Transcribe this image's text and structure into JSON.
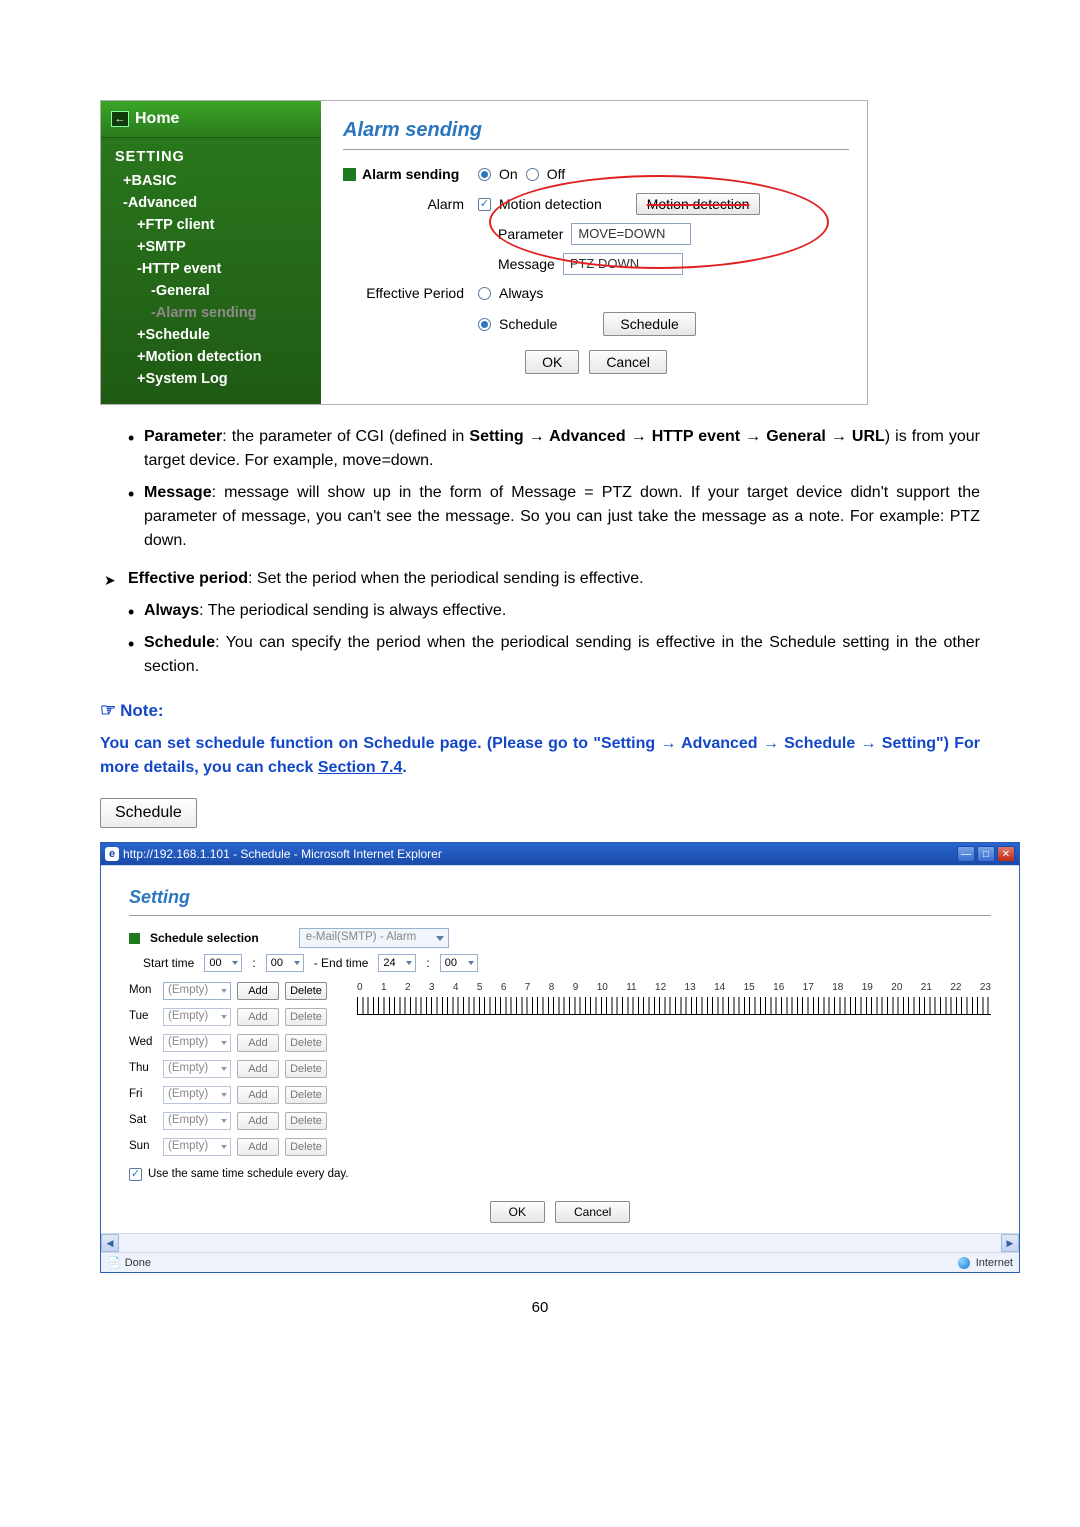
{
  "alarm_panel": {
    "home_label": "Home",
    "sidebar": {
      "setting": "SETTING",
      "items": [
        {
          "label": "+BASIC",
          "indent": "ind1"
        },
        {
          "label": "-Advanced",
          "indent": "ind1"
        },
        {
          "label": "+FTP client",
          "indent": "ind2"
        },
        {
          "label": "+SMTP",
          "indent": "ind2"
        },
        {
          "label": "-HTTP event",
          "indent": "ind2"
        },
        {
          "label": "-General",
          "indent": "ind3"
        },
        {
          "label": "-Alarm sending",
          "indent": "ind3",
          "active": true
        },
        {
          "label": "+Schedule",
          "indent": "ind2"
        },
        {
          "label": "+Motion detection",
          "indent": "ind2"
        },
        {
          "label": "+System Log",
          "indent": "ind2"
        }
      ]
    },
    "main": {
      "title": "Alarm sending",
      "alarm_sending_label": "Alarm sending",
      "on_label": "On",
      "off_label": "Off",
      "alarm_label": "Alarm",
      "motion_cb_label": "Motion detection",
      "red_button_label": "Motion detection",
      "parameter_label": "Parameter",
      "parameter_value": "MOVE=DOWN",
      "message_label": "Message",
      "message_value": "PTZ DOWN",
      "effective_label": "Effective Period",
      "always_label": "Always",
      "schedule_label": "Schedule",
      "schedule_btn": "Schedule",
      "ok": "OK",
      "cancel": "Cancel"
    }
  },
  "body": {
    "param_bullet_pre": "Parameter",
    "param_bullet_txt1": ": the parameter of CGI (defined in ",
    "param_bullet_strong": "Setting → Advanced → HTTP event → General → URL",
    "param_bullet_txt2": ") is from your target device. For example, move=down.",
    "msg_bullet_pre": "Message",
    "msg_bullet_txt": ": message will show up in the form of Message = PTZ down. If your target device didn't support the parameter of message, you can't see the message. So you can just take the message as a note. For example: PTZ down.",
    "effective_line_pre": "Effective period",
    "effective_line_txt": ": Set the period when the periodical sending is effective.",
    "always_bullet_pre": "Always",
    "always_bullet_txt": ": The periodical sending is always effective.",
    "schedule_bullet_pre": "Schedule",
    "schedule_bullet_txt": ": You can specify the period when the periodical sending is effective in the Schedule setting in the other section.",
    "note_label": "Note:",
    "note_body_1": "You can set schedule function on ",
    "note_body_strong1": "Schedule page",
    "note_body_2": ". (Please go to \"",
    "note_body_strong2": "Setting → Advanced → Schedule → Setting",
    "note_body_3": "\") For more details, you can check ",
    "note_body_sec": "Section 7.4",
    "note_body_4": ".",
    "schedule_standalone": "Schedule"
  },
  "ie": {
    "title": "http://192.168.1.101 - Schedule - Microsoft Internet Explorer",
    "heading": "Setting",
    "sched_selection_label": "Schedule selection",
    "sched_selection_value": "e-Mail(SMTP) - Alarm",
    "start_time_label": "Start time",
    "start_hh": "00",
    "start_mm": "00",
    "end_time_label": "- End time",
    "end_hh": "24",
    "end_mm": "00",
    "days": [
      "Mon",
      "Tue",
      "Wed",
      "Thu",
      "Fri",
      "Sat",
      "Sun"
    ],
    "empty_label": "(Empty)",
    "add_label": "Add",
    "delete_label": "Delete",
    "ruler_hours": [
      "0",
      "1",
      "2",
      "3",
      "4",
      "5",
      "6",
      "7",
      "8",
      "9",
      "10",
      "11",
      "12",
      "13",
      "14",
      "15",
      "16",
      "17",
      "18",
      "19",
      "20",
      "21",
      "22",
      "23"
    ],
    "use_same_label": "Use the same time schedule every day.",
    "ok": "OK",
    "cancel": "Cancel",
    "status_done": "Done",
    "status_internet": "Internet"
  },
  "page_number": "60"
}
